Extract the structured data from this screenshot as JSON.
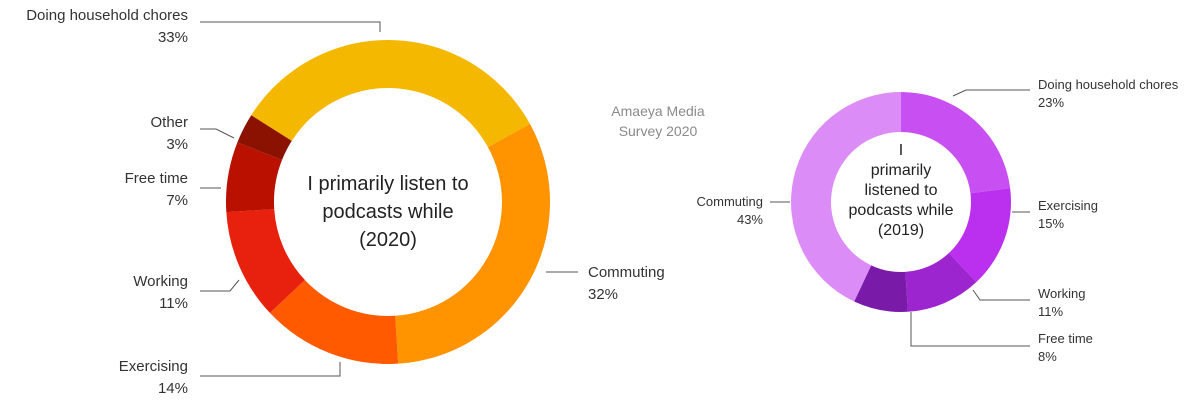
{
  "source_note": [
    "Amaeya Media",
    "Survey 2020"
  ],
  "chart_data": [
    {
      "type": "pie",
      "donut": true,
      "title_lines": [
        "I primarily listen to",
        "podcasts while",
        "(2020)"
      ],
      "labels": [
        "Doing household chores",
        "Commuting",
        "Exercising",
        "Working",
        "Free time",
        "Other"
      ],
      "values": [
        33,
        32,
        14,
        11,
        7,
        3
      ],
      "value_labels": [
        "33%",
        "32%",
        "14%",
        "11%",
        "7%",
        "3%"
      ],
      "colors": [
        "#f5b800",
        "#ff9300",
        "#ff5a00",
        "#e8200e",
        "#b91000",
        "#8b1200"
      ]
    },
    {
      "type": "pie",
      "donut": true,
      "title_lines": [
        "I",
        "primarily",
        "listened to",
        "podcasts while",
        "(2019)"
      ],
      "labels": [
        "Doing household chores",
        "Exercising",
        "Working",
        "Free time",
        "Commuting"
      ],
      "values": [
        23,
        15,
        11,
        8,
        43
      ],
      "value_labels": [
        "23%",
        "15%",
        "11%",
        "8%",
        "43%"
      ],
      "colors": [
        "#c84ff2",
        "#bb30ee",
        "#9d25cf",
        "#7a1aa8",
        "#dc8cf6"
      ]
    }
  ]
}
